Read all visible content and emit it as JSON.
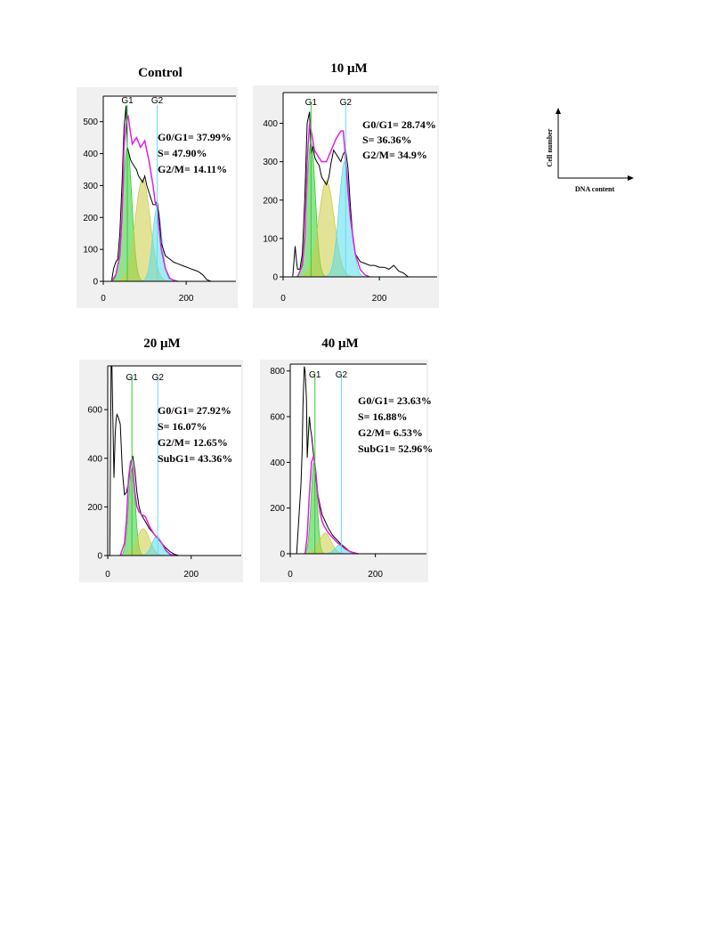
{
  "chart_data": [
    {
      "type": "area",
      "title": "Control",
      "xlabel": "",
      "ylabel": "",
      "xlim": [
        0,
        320
      ],
      "ylim": [
        0,
        580
      ],
      "xticks": [
        0,
        200
      ],
      "xtick_labels": [
        "0",
        "200"
      ],
      "yticks": [
        0,
        100,
        200,
        300,
        400,
        500
      ],
      "ytick_labels": [
        "0",
        "100",
        "200",
        "300",
        "400",
        "500"
      ],
      "markers": [
        {
          "label": "G1",
          "x": 58,
          "color": "#33cc33"
        },
        {
          "label": "G2",
          "x": 130,
          "color": "#66ddee"
        }
      ],
      "stats": [
        "G0/G1= 37.99%",
        "S= 47.90%",
        "G2/M= 14.11%"
      ],
      "histogram": {
        "x": [
          0,
          20,
          25,
          30,
          35,
          40,
          45,
          50,
          55,
          58,
          62,
          66,
          70,
          75,
          80,
          85,
          90,
          95,
          100,
          105,
          110,
          115,
          120,
          125,
          130,
          135,
          140,
          150,
          160,
          170,
          180,
          190,
          200,
          210,
          220,
          230,
          240,
          250,
          260,
          320
        ],
        "y": [
          0,
          0,
          40,
          60,
          70,
          150,
          300,
          480,
          550,
          420,
          400,
          380,
          370,
          360,
          350,
          330,
          320,
          310,
          330,
          300,
          280,
          260,
          240,
          240,
          250,
          200,
          120,
          80,
          70,
          60,
          55,
          50,
          45,
          40,
          35,
          30,
          20,
          5,
          0,
          0
        ]
      },
      "fit": {
        "x": [
          20,
          30,
          40,
          45,
          50,
          55,
          60,
          65,
          70,
          75,
          80,
          90,
          100,
          110,
          120,
          125,
          130,
          135,
          140,
          150,
          160,
          170,
          180
        ],
        "y": [
          0,
          20,
          80,
          200,
          420,
          490,
          520,
          470,
          430,
          440,
          450,
          420,
          440,
          380,
          300,
          250,
          230,
          160,
          100,
          40,
          10,
          3,
          0
        ]
      },
      "components": [
        {
          "name": "G0/G1",
          "color": "#33cc33",
          "mean": 58,
          "sd": 11,
          "peak": 420
        },
        {
          "name": "S",
          "color": "#cccc44",
          "mean": 95,
          "sd": 18,
          "peak": 320
        },
        {
          "name": "G2/M",
          "color": "#55ddee",
          "mean": 130,
          "sd": 11,
          "peak": 230
        }
      ]
    },
    {
      "type": "area",
      "title": "10 μM",
      "xlabel": "",
      "ylabel": "",
      "xlim": [
        0,
        320
      ],
      "ylim": [
        0,
        480
      ],
      "xticks": [
        0,
        200
      ],
      "xtick_labels": [
        "0",
        "200"
      ],
      "yticks": [
        0,
        100,
        200,
        300,
        400
      ],
      "ytick_labels": [
        "0",
        "100",
        "200",
        "300",
        "400"
      ],
      "markers": [
        {
          "label": "G1",
          "x": 58,
          "color": "#33cc33"
        },
        {
          "label": "G2",
          "x": 130,
          "color": "#66ddee"
        }
      ],
      "stats": [
        "G0/G1= 28.74%",
        "S= 36.36%",
        "G2/M= 34.9%"
      ],
      "histogram": {
        "x": [
          0,
          20,
          25,
          28,
          30,
          35,
          40,
          45,
          50,
          55,
          58,
          62,
          66,
          70,
          75,
          80,
          85,
          90,
          95,
          100,
          105,
          110,
          115,
          120,
          125,
          130,
          135,
          140,
          145,
          150,
          160,
          170,
          180,
          190,
          200,
          210,
          220,
          230,
          240,
          250,
          260,
          320
        ],
        "y": [
          0,
          0,
          80,
          40,
          20,
          20,
          60,
          200,
          400,
          430,
          320,
          340,
          310,
          300,
          290,
          260,
          250,
          240,
          260,
          300,
          330,
          320,
          310,
          300,
          320,
          330,
          280,
          180,
          100,
          60,
          40,
          35,
          30,
          30,
          25,
          25,
          20,
          30,
          15,
          10,
          0,
          0
        ]
      },
      "fit": {
        "x": [
          30,
          40,
          45,
          50,
          55,
          60,
          65,
          70,
          75,
          80,
          90,
          100,
          110,
          115,
          120,
          125,
          130,
          135,
          140,
          150,
          160,
          170,
          180
        ],
        "y": [
          0,
          30,
          100,
          300,
          400,
          370,
          330,
          320,
          310,
          300,
          300,
          330,
          360,
          370,
          380,
          380,
          300,
          220,
          150,
          60,
          20,
          5,
          0
        ]
      },
      "components": [
        {
          "name": "G0/G1",
          "color": "#33cc33",
          "mean": 58,
          "sd": 9,
          "peak": 350
        },
        {
          "name": "S",
          "color": "#cccc44",
          "mean": 90,
          "sd": 16,
          "peak": 250
        },
        {
          "name": "G2/M",
          "color": "#55ddee",
          "mean": 128,
          "sd": 12,
          "peak": 300
        }
      ]
    },
    {
      "type": "area",
      "title": "20 μM",
      "xlabel": "",
      "ylabel": "",
      "xlim": [
        0,
        320
      ],
      "ylim": [
        0,
        780
      ],
      "xticks": [
        0,
        200
      ],
      "xtick_labels": [
        "0",
        "200"
      ],
      "yticks": [
        0,
        200,
        400,
        600
      ],
      "ytick_labels": [
        "0",
        "200",
        "400",
        "600"
      ],
      "markers": [
        {
          "label": "G1",
          "x": 58,
          "color": "#33cc33"
        },
        {
          "label": "G2",
          "x": 120,
          "color": "#66ddee"
        }
      ],
      "stats": [
        "G0/G1= 27.92%",
        "S= 16.07%",
        "G2/M= 12.65%",
        "SubG1= 43.36%"
      ],
      "histogram": {
        "x": [
          0,
          5,
          8,
          10,
          12,
          15,
          18,
          20,
          22,
          25,
          30,
          35,
          40,
          45,
          50,
          55,
          60,
          65,
          70,
          75,
          80,
          90,
          100,
          110,
          120,
          130,
          140,
          150,
          160,
          170,
          320
        ],
        "y": [
          0,
          0,
          780,
          780,
          600,
          320,
          500,
          560,
          580,
          570,
          540,
          350,
          250,
          260,
          300,
          380,
          410,
          350,
          260,
          200,
          170,
          140,
          110,
          90,
          70,
          50,
          30,
          15,
          5,
          0,
          0
        ]
      },
      "fit": {
        "x": [
          30,
          40,
          45,
          50,
          55,
          60,
          65,
          70,
          75,
          80,
          90,
          100,
          110,
          120,
          130,
          140,
          150,
          160
        ],
        "y": [
          0,
          50,
          150,
          320,
          390,
          360,
          260,
          200,
          180,
          170,
          160,
          120,
          90,
          70,
          50,
          20,
          5,
          0
        ]
      },
      "components": [
        {
          "name": "G0/G1",
          "color": "#33cc33",
          "mean": 58,
          "sd": 8,
          "peak": 360
        },
        {
          "name": "S",
          "color": "#cccc44",
          "mean": 85,
          "sd": 15,
          "peak": 110
        },
        {
          "name": "G2/M",
          "color": "#55ddee",
          "mean": 118,
          "sd": 12,
          "peak": 80
        }
      ]
    },
    {
      "type": "area",
      "title": "40 μM",
      "xlabel": "",
      "ylabel": "",
      "xlim": [
        0,
        320
      ],
      "ylim": [
        0,
        830
      ],
      "xticks": [
        0,
        200
      ],
      "xtick_labels": [
        "0",
        "200"
      ],
      "yticks": [
        0,
        200,
        400,
        600,
        800
      ],
      "ytick_labels": [
        "0",
        "200",
        "400",
        "600",
        "800"
      ],
      "markers": [
        {
          "label": "G1",
          "x": 58,
          "color": "#33cc33"
        },
        {
          "label": "G2",
          "x": 120,
          "color": "#66ddee"
        }
      ],
      "stats": [
        "G0/G1= 23.63%",
        "S= 16.88%",
        "G2/M= 6.53%",
        "SubG1= 52.96%"
      ],
      "histogram": {
        "x": [
          0,
          15,
          20,
          25,
          28,
          30,
          33,
          35,
          38,
          40,
          42,
          45,
          48,
          50,
          55,
          60,
          65,
          70,
          75,
          80,
          90,
          100,
          110,
          120,
          130,
          140,
          150,
          160,
          320
        ],
        "y": [
          0,
          0,
          150,
          300,
          450,
          650,
          820,
          800,
          680,
          420,
          500,
          600,
          540,
          520,
          430,
          330,
          260,
          210,
          170,
          150,
          110,
          80,
          60,
          40,
          25,
          10,
          5,
          0,
          0
        ]
      },
      "fit": {
        "x": [
          35,
          40,
          45,
          50,
          55,
          60,
          65,
          70,
          75,
          80,
          90,
          100,
          110,
          120,
          130,
          140,
          150,
          160
        ],
        "y": [
          0,
          80,
          260,
          400,
          430,
          360,
          250,
          180,
          140,
          120,
          90,
          70,
          50,
          35,
          20,
          10,
          3,
          0
        ]
      },
      "components": [
        {
          "name": "G0/G1",
          "color": "#33cc33",
          "mean": 56,
          "sd": 7,
          "peak": 400
        },
        {
          "name": "S",
          "color": "#cccc44",
          "mean": 82,
          "sd": 14,
          "peak": 90
        },
        {
          "name": "G2/M",
          "color": "#55ddee",
          "mean": 118,
          "sd": 12,
          "peak": 40
        }
      ]
    }
  ],
  "key": {
    "y_label": "Cell number",
    "x_label": "DNA content"
  }
}
